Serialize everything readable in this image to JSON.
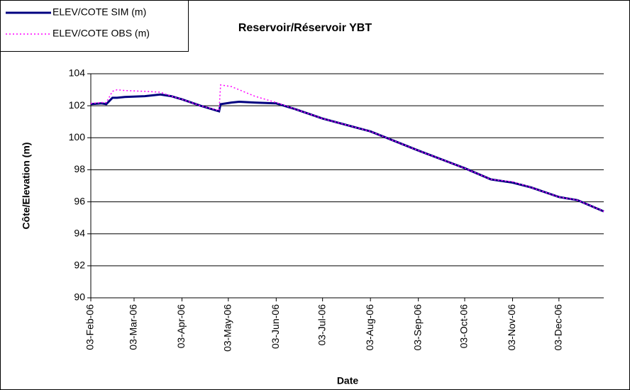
{
  "chart_data": {
    "type": "line",
    "title": "Reservoir/Réservoir YBT",
    "x_label": "Date",
    "y_label": "Côte/Elevation (m)",
    "x": [
      "2006-02-03",
      "2006-02-10",
      "2006-02-13",
      "2006-02-17",
      "2006-02-20",
      "2006-02-25",
      "2006-03-10",
      "2006-03-20",
      "2006-03-27",
      "2006-04-03",
      "2006-04-15",
      "2006-04-27",
      "2006-04-28",
      "2006-05-05",
      "2006-05-10",
      "2006-05-20",
      "2006-06-03",
      "2006-06-15",
      "2006-07-03",
      "2006-08-03",
      "2006-09-03",
      "2006-10-03",
      "2006-10-20",
      "2006-11-03",
      "2006-11-15",
      "2006-12-03",
      "2006-12-15",
      "2007-01-01"
    ],
    "series": [
      {
        "name": "ELEV/COTE SIM (m)",
        "color": "#000080",
        "style": "solid",
        "values": [
          102.1,
          102.15,
          102.1,
          102.5,
          102.5,
          102.55,
          102.6,
          102.7,
          102.6,
          102.4,
          102.0,
          101.65,
          102.1,
          102.2,
          102.25,
          102.2,
          102.15,
          101.8,
          101.2,
          100.4,
          99.2,
          98.1,
          97.4,
          97.2,
          96.9,
          96.3,
          96.1,
          95.4
        ]
      },
      {
        "name": "ELEV/COTE OBS (m)",
        "color": "#ff00ff",
        "style": "dotted",
        "values": [
          102.15,
          102.2,
          102.2,
          102.9,
          103.0,
          102.95,
          102.9,
          102.85,
          102.6,
          102.4,
          102.0,
          101.7,
          103.3,
          103.2,
          103.0,
          102.6,
          102.2,
          101.8,
          101.2,
          100.4,
          99.2,
          98.1,
          97.4,
          97.25,
          96.9,
          96.3,
          96.1,
          95.4
        ]
      }
    ],
    "xlim": [
      "2006-02-03",
      "2007-01-01"
    ],
    "xticks": [
      {
        "value": "2006-02-03",
        "label": "03-Feb-06"
      },
      {
        "value": "2006-03-03",
        "label": "03-Mar-06"
      },
      {
        "value": "2006-04-03",
        "label": "03-Apr-06"
      },
      {
        "value": "2006-05-03",
        "label": "03-May-06"
      },
      {
        "value": "2006-06-03",
        "label": "03-Jun-06"
      },
      {
        "value": "2006-07-03",
        "label": "03-Jul-06"
      },
      {
        "value": "2006-08-03",
        "label": "03-Aug-06"
      },
      {
        "value": "2006-09-03",
        "label": "03-Sep-06"
      },
      {
        "value": "2006-10-03",
        "label": "03-Oct-06"
      },
      {
        "value": "2006-11-03",
        "label": "03-Nov-06"
      },
      {
        "value": "2006-12-03",
        "label": "03-Dec-06"
      }
    ],
    "ylim": [
      90,
      104
    ],
    "yticks": [
      90,
      92,
      94,
      96,
      98,
      100,
      102,
      104
    ],
    "grid": true,
    "legend": "top-left"
  }
}
